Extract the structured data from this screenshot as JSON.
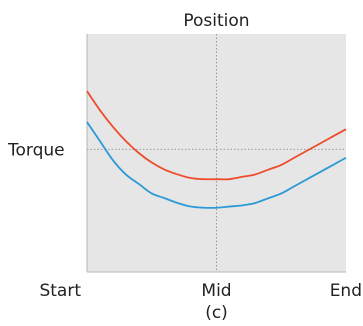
{
  "chart_data": {
    "type": "line",
    "title": "Position",
    "caption": "(c)",
    "xlabel": "Position",
    "ylabel": "Torque",
    "x_ticks": [
      "Start",
      "Mid",
      "End"
    ],
    "y_ticks": [
      "Torque"
    ],
    "xlim": [
      0,
      1
    ],
    "ylim": [
      0,
      1
    ],
    "grid": false,
    "guides": {
      "x": 0.5,
      "y": 0.515
    },
    "background": "#e6e6e6",
    "x": [
      0,
      0.05,
      0.1,
      0.15,
      0.2,
      0.25,
      0.3,
      0.35,
      0.4,
      0.45,
      0.5,
      0.55,
      0.6,
      0.65,
      0.7,
      0.75,
      0.8,
      0.85,
      0.9,
      0.95,
      1
    ],
    "series": [
      {
        "color": "#ee4c2c",
        "values": [
          0.76,
          0.68,
          0.61,
          0.55,
          0.5,
          0.46,
          0.43,
          0.41,
          0.395,
          0.39,
          0.39,
          0.39,
          0.4,
          0.41,
          0.43,
          0.45,
          0.48,
          0.51,
          0.54,
          0.57,
          0.6
        ]
      },
      {
        "color": "#2b9ad6",
        "values": [
          0.63,
          0.55,
          0.47,
          0.41,
          0.37,
          0.33,
          0.31,
          0.29,
          0.275,
          0.27,
          0.27,
          0.275,
          0.28,
          0.29,
          0.31,
          0.33,
          0.36,
          0.39,
          0.42,
          0.45,
          0.48
        ]
      }
    ]
  }
}
